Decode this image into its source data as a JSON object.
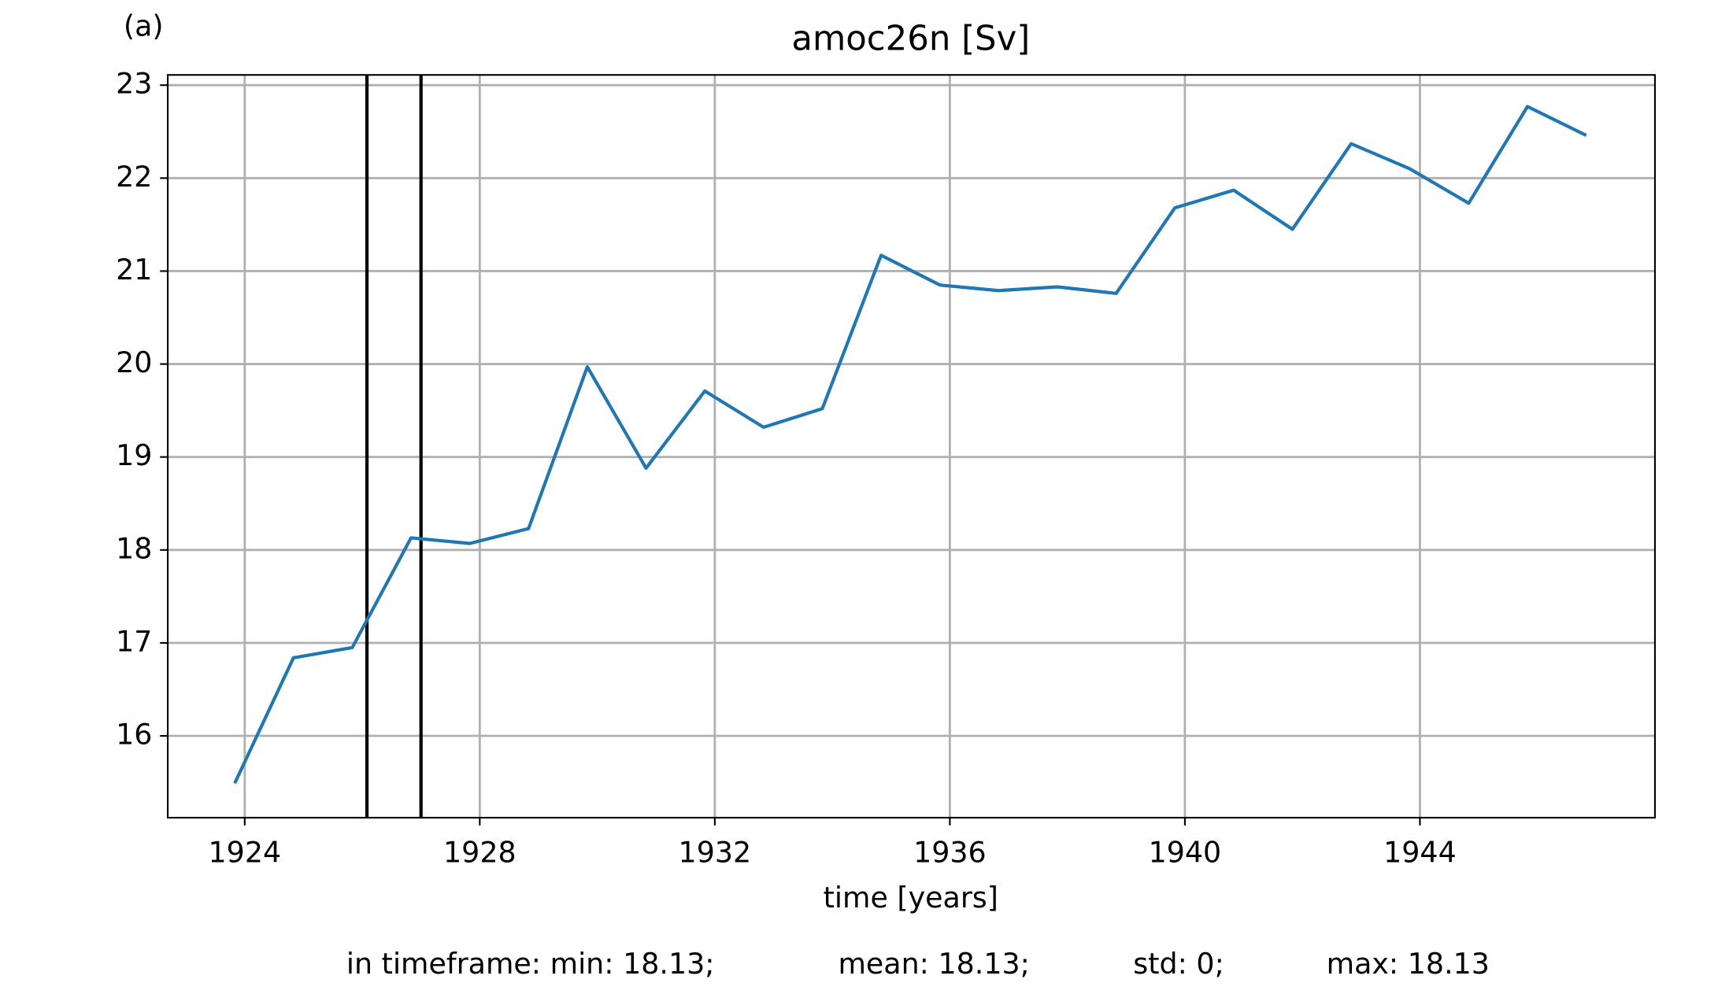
{
  "chart_data": {
    "type": "line",
    "panel_label": "(a)",
    "title": "amoc26n [Sv]",
    "x_label": "time [years]",
    "x": [
      1923.83,
      1924.83,
      1925.83,
      1926.83,
      1927.83,
      1928.83,
      1929.83,
      1930.83,
      1931.83,
      1932.83,
      1933.83,
      1934.83,
      1935.83,
      1936.83,
      1937.83,
      1938.83,
      1939.83,
      1940.83,
      1941.83,
      1942.83,
      1943.83,
      1944.83,
      1945.83,
      1946.83
    ],
    "series": [
      {
        "color": "#1f77b4",
        "values": [
          15.49,
          16.84,
          16.95,
          18.13,
          18.07,
          18.23,
          19.97,
          18.88,
          19.71,
          19.32,
          19.52,
          21.17,
          20.85,
          20.79,
          20.83,
          20.76,
          21.68,
          21.87,
          21.45,
          22.37,
          22.1,
          21.73,
          22.77,
          22.46
        ]
      }
    ],
    "vlines": [
      1926.08,
      1927.0
    ],
    "vline_color": "#000000",
    "xlim": [
      1922.69,
      1948.0
    ],
    "xticks": [
      1924,
      1928,
      1932,
      1936,
      1940,
      1944
    ],
    "ylim": [
      15.12,
      23.11
    ],
    "yticks": [
      16,
      17,
      18,
      19,
      20,
      21,
      22,
      23
    ],
    "grid": true,
    "footer": [
      "in timeframe: min: 18.13;",
      "mean: 18.13;",
      "std: 0;",
      "max: 18.13"
    ]
  }
}
